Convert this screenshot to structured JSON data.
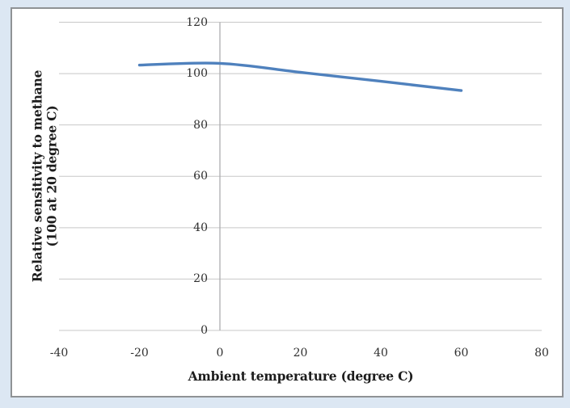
{
  "page": {
    "background": "#dce7f3",
    "frame_border": "#8f9295",
    "frame_fill": "#ffffff"
  },
  "chart_data": {
    "type": "line",
    "title": "",
    "xlabel": "Ambient temperature (degree C)",
    "ylabel": "Relative sensitivity to methane (100 at 20 degree C)",
    "ylabel_lines": [
      "Relative sensitivity to methane",
      "(100 at 20 degree C)"
    ],
    "series": [
      {
        "name": "Relative sensitivity",
        "x": [
          -20,
          0,
          20,
          40,
          60
        ],
        "y": [
          103.3,
          104,
          100.5,
          97,
          93.4
        ]
      }
    ],
    "xlim": [
      -40,
      80
    ],
    "ylim": [
      0,
      120
    ],
    "xticks": [
      -40,
      -20,
      0,
      20,
      40,
      60,
      80
    ],
    "yticks": [
      0,
      20,
      40,
      60,
      80,
      100,
      120
    ],
    "grid": "horizontal-only",
    "legend": "none",
    "smooth_line": true,
    "line_color": "#4f81bd",
    "gridline_color": "#c8c8c8",
    "axis_line_color": "#adadb0",
    "tick_text_color": "#303030",
    "title_text_color": "#1d1d1d"
  }
}
